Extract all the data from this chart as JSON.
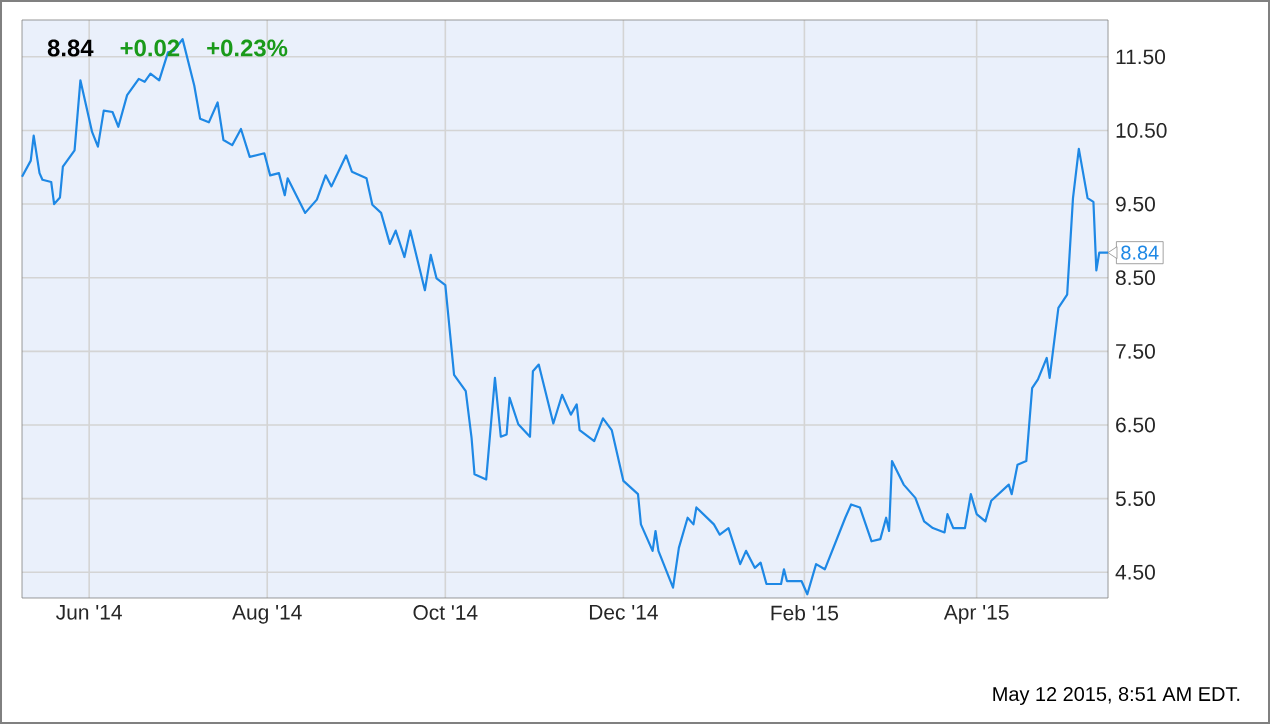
{
  "chart_data": {
    "type": "line",
    "title": "8.84",
    "annotations": [
      "+0.02",
      "+0.23%",
      {
        "text": "8.84",
        "x": "2015-05-16",
        "y": 8.84
      },
      "May 12 2015, 8:51 AM EDT."
    ],
    "x": [
      "2014-05-09",
      "2014-05-12",
      "2014-05-13",
      "2014-05-15",
      "2014-05-16",
      "2014-05-19",
      "2014-05-20",
      "2014-05-22",
      "2014-05-23",
      "2014-05-27",
      "2014-05-29",
      "2014-06-02",
      "2014-06-04",
      "2014-06-06",
      "2014-06-09",
      "2014-06-11",
      "2014-06-14",
      "2014-06-18",
      "2014-06-20",
      "2014-06-22",
      "2014-06-25",
      "2014-06-28",
      "2014-06-30",
      "2014-07-03",
      "2014-07-07",
      "2014-07-09",
      "2014-07-12",
      "2014-07-15",
      "2014-07-17",
      "2014-07-20",
      "2014-07-23",
      "2014-07-26",
      "2014-07-31",
      "2014-08-02",
      "2014-08-05",
      "2014-08-07",
      "2014-08-08",
      "2014-08-14",
      "2014-08-18",
      "2014-08-21",
      "2014-08-23",
      "2014-08-28",
      "2014-08-30",
      "2014-09-04",
      "2014-09-06",
      "2014-09-09",
      "2014-09-12",
      "2014-09-14",
      "2014-09-17",
      "2014-09-19",
      "2014-09-24",
      "2014-09-26",
      "2014-09-28",
      "2014-10-01",
      "2014-10-04",
      "2014-10-08",
      "2014-10-10",
      "2014-10-11",
      "2014-10-15",
      "2014-10-18",
      "2014-10-20",
      "2014-10-22",
      "2014-10-23",
      "2014-10-26",
      "2014-10-30",
      "2014-10-31",
      "2014-11-02",
      "2014-11-07",
      "2014-11-10",
      "2014-11-13",
      "2014-11-15",
      "2014-11-16",
      "2014-11-21",
      "2014-11-24",
      "2014-11-27",
      "2014-12-01",
      "2014-12-06",
      "2014-12-07",
      "2014-12-11",
      "2014-12-12",
      "2014-12-13",
      "2014-12-18",
      "2014-12-20",
      "2014-12-23",
      "2014-12-25",
      "2014-12-26",
      "2015-01-01",
      "2015-01-03",
      "2015-01-06",
      "2015-01-10",
      "2015-01-12",
      "2015-01-15",
      "2015-01-17",
      "2015-01-19",
      "2015-01-24",
      "2015-01-25",
      "2015-01-26",
      "2015-01-31",
      "2015-02-02",
      "2015-02-05",
      "2015-02-08",
      "2015-02-15",
      "2015-02-17",
      "2015-02-20",
      "2015-02-24",
      "2015-02-27",
      "2015-03-01",
      "2015-03-02",
      "2015-03-03",
      "2015-03-07",
      "2015-03-11",
      "2015-03-14",
      "2015-03-17",
      "2015-03-21",
      "2015-03-22",
      "2015-03-24",
      "2015-03-28",
      "2015-03-30",
      "2015-04-01",
      "2015-04-04",
      "2015-04-06",
      "2015-04-12",
      "2015-04-13",
      "2015-04-15",
      "2015-04-18",
      "2015-04-20",
      "2015-04-22",
      "2015-04-25",
      "2015-04-26",
      "2015-04-29",
      "2015-05-02",
      "2015-05-04",
      "2015-05-06",
      "2015-05-09",
      "2015-05-11",
      "2015-05-12",
      "2015-05-13",
      "2015-05-16"
    ],
    "series": [
      {
        "color": "#1e88e5",
        "values": [
          9.87,
          10.09,
          10.43,
          9.92,
          9.83,
          9.8,
          9.5,
          9.59,
          10.01,
          10.23,
          11.18,
          10.48,
          10.28,
          10.77,
          10.75,
          10.55,
          10.98,
          11.2,
          11.16,
          11.27,
          11.18,
          11.56,
          11.58,
          11.74,
          11.11,
          10.66,
          10.61,
          10.88,
          10.37,
          10.3,
          10.52,
          10.14,
          10.19,
          9.89,
          9.92,
          9.62,
          9.85,
          9.38,
          9.56,
          9.89,
          9.74,
          10.16,
          9.94,
          9.85,
          9.49,
          9.38,
          8.96,
          9.14,
          8.78,
          9.14,
          8.33,
          8.81,
          8.49,
          8.4,
          7.18,
          6.96,
          6.32,
          5.83,
          5.76,
          7.14,
          6.34,
          6.37,
          6.87,
          6.51,
          6.34,
          7.23,
          7.32,
          6.52,
          6.91,
          6.64,
          6.78,
          6.43,
          6.28,
          6.59,
          6.43,
          5.74,
          5.56,
          5.15,
          4.79,
          5.06,
          4.79,
          4.29,
          4.83,
          5.24,
          5.15,
          5.38,
          5.15,
          5.01,
          5.1,
          4.61,
          4.79,
          4.56,
          4.63,
          4.34,
          4.34,
          4.54,
          4.38,
          4.38,
          4.2,
          4.61,
          4.54,
          5.24,
          5.42,
          5.38,
          4.92,
          4.95,
          5.24,
          5.06,
          6.01,
          5.69,
          5.51,
          5.19,
          5.1,
          5.04,
          5.29,
          5.1,
          5.1,
          5.56,
          5.29,
          5.19,
          5.47,
          5.69,
          5.56,
          5.96,
          6.01,
          7.0,
          7.12,
          7.41,
          7.14,
          8.09,
          8.27,
          9.58,
          10.25,
          9.58,
          9.53,
          8.6,
          8.84,
          8.84
        ]
      }
    ],
    "xlim": [
      "2014-05-09",
      "2015-05-16"
    ],
    "xticks": [
      {
        "value": "2014-06-01",
        "label": "Jun '14"
      },
      {
        "value": "2014-08-01",
        "label": "Aug '14"
      },
      {
        "value": "2014-10-01",
        "label": "Oct '14"
      },
      {
        "value": "2014-12-01",
        "label": "Dec '14"
      },
      {
        "value": "2015-02-01",
        "label": "Feb '15"
      },
      {
        "value": "2015-04-01",
        "label": "Apr '15"
      }
    ],
    "ylim": [
      4.15,
      12.0
    ],
    "yticks": [
      {
        "value": 4.5,
        "label": "4.50"
      },
      {
        "value": 5.5,
        "label": "5.50"
      },
      {
        "value": 6.5,
        "label": "6.50"
      },
      {
        "value": 7.5,
        "label": "7.50"
      },
      {
        "value": 8.5,
        "label": "8.50"
      },
      {
        "value": 9.5,
        "label": "9.50"
      },
      {
        "value": 10.5,
        "label": "10.50"
      },
      {
        "value": 11.5,
        "label": "11.50"
      }
    ],
    "grid": true
  }
}
